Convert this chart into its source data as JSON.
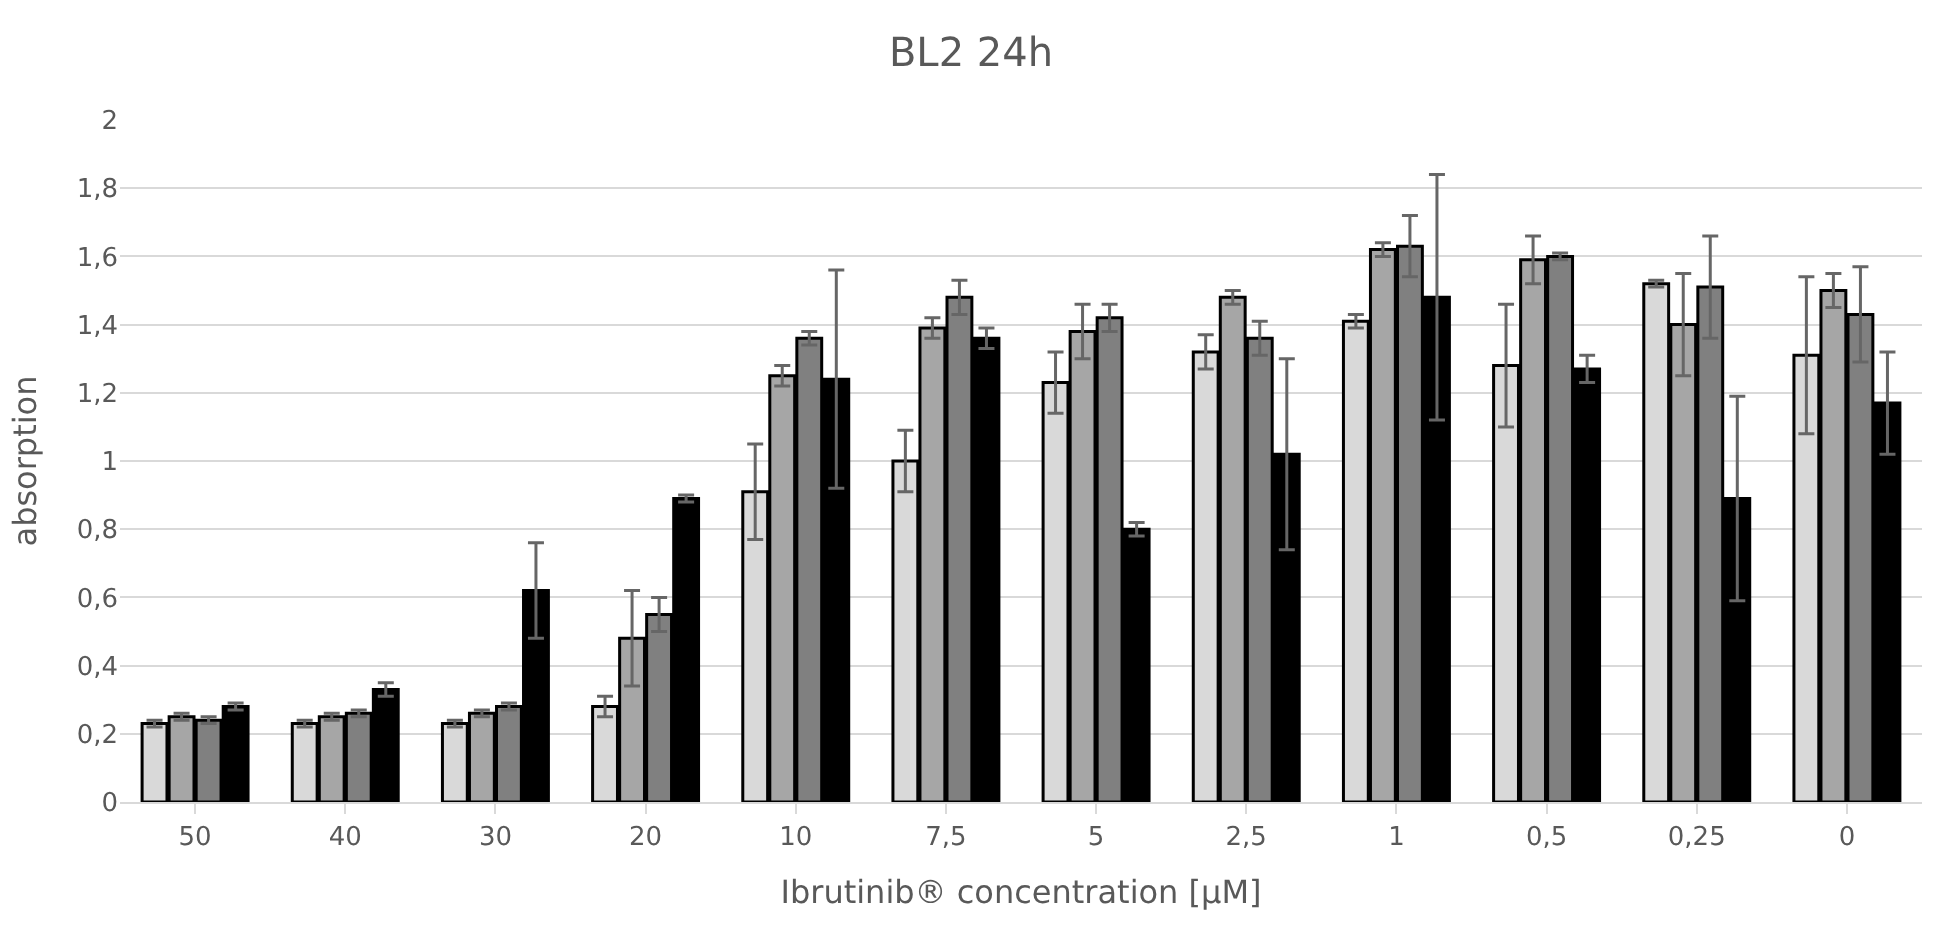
{
  "chart_data": {
    "type": "bar",
    "title": "BL2 24h",
    "xlabel": "Ibrutinib® concentration [µM]",
    "ylabel": "absorption",
    "categories": [
      "50",
      "40",
      "30",
      "20",
      "10",
      "7,5",
      "5",
      "2,5",
      "1",
      "0,5",
      "0,25",
      "0"
    ],
    "series": [
      {
        "color": "#d9d9d9",
        "values": [
          0.23,
          0.23,
          0.23,
          0.28,
          0.91,
          1.0,
          1.23,
          1.32,
          1.41,
          1.28,
          1.52,
          1.31
        ],
        "errors": [
          0.01,
          0.01,
          0.01,
          0.03,
          0.14,
          0.09,
          0.09,
          0.05,
          0.02,
          0.18,
          0.01,
          0.23
        ]
      },
      {
        "color": "#a6a6a6",
        "values": [
          0.25,
          0.25,
          0.26,
          0.48,
          1.25,
          1.39,
          1.38,
          1.48,
          1.62,
          1.59,
          1.4,
          1.5
        ],
        "errors": [
          0.01,
          0.01,
          0.01,
          0.14,
          0.03,
          0.03,
          0.08,
          0.02,
          0.02,
          0.07,
          0.15,
          0.05
        ]
      },
      {
        "color": "#808080",
        "values": [
          0.24,
          0.26,
          0.28,
          0.55,
          1.36,
          1.48,
          1.42,
          1.36,
          1.63,
          1.6,
          1.51,
          1.43
        ],
        "errors": [
          0.01,
          0.01,
          0.01,
          0.05,
          0.02,
          0.05,
          0.04,
          0.05,
          0.09,
          0.01,
          0.15,
          0.14
        ]
      },
      {
        "color": "#000000",
        "values": [
          0.28,
          0.33,
          0.62,
          0.89,
          1.24,
          1.36,
          0.8,
          1.02,
          1.48,
          1.27,
          0.89,
          1.17
        ],
        "errors": [
          0.01,
          0.02,
          0.14,
          0.01,
          0.32,
          0.03,
          0.02,
          0.28,
          0.36,
          0.04,
          0.3,
          0.15
        ]
      }
    ],
    "ylim": [
      0,
      2
    ],
    "yticks": [
      0,
      {
        "value": 0.2,
        "label": "0,2"
      },
      {
        "value": 0.4,
        "label": "0,4"
      },
      {
        "value": 0.6,
        "label": "0,6"
      },
      {
        "value": 0.8,
        "label": "0,8"
      },
      1,
      {
        "value": 1.2,
        "label": "1,2"
      },
      {
        "value": 1.4,
        "label": "1,4"
      },
      {
        "value": 1.6,
        "label": "1,6"
      },
      {
        "value": 1.8,
        "label": "1,8"
      },
      2
    ],
    "grid": "y"
  }
}
